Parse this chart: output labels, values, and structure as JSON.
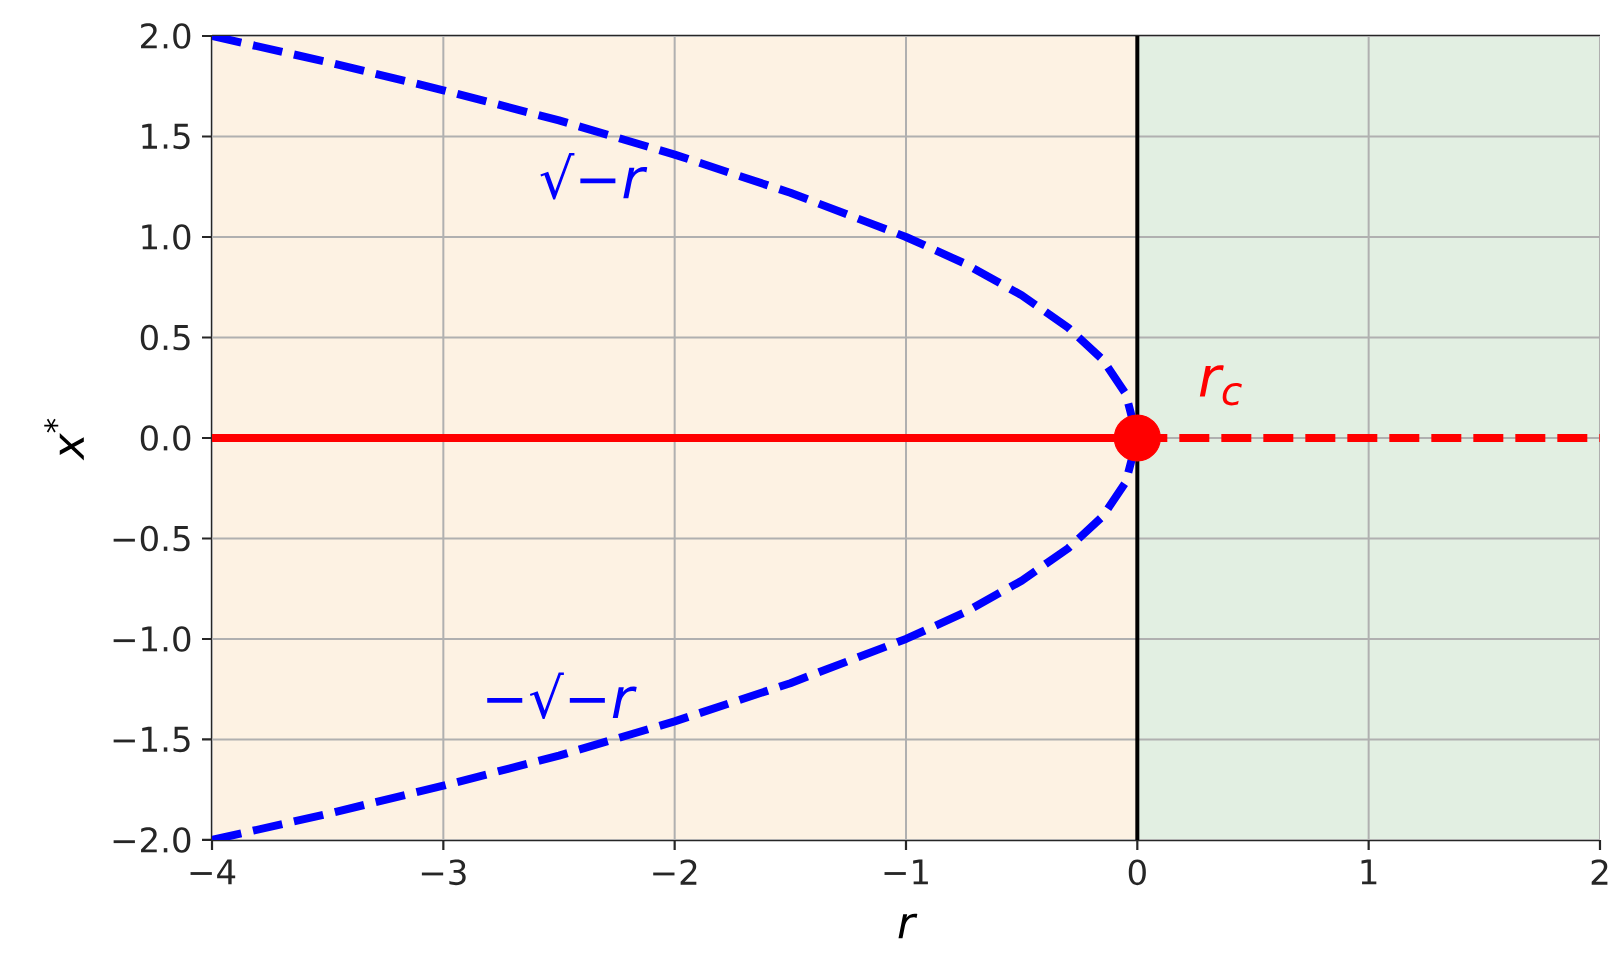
{
  "chart_data": {
    "type": "line",
    "xlabel": "r",
    "ylabel": "x$^{*}$",
    "xlim": [
      -4,
      2
    ],
    "ylim": [
      -2,
      2
    ],
    "xticks": [
      {
        "value": -4,
        "label": "−4"
      },
      {
        "value": -3,
        "label": "−3"
      },
      {
        "value": -2,
        "label": "−2"
      },
      {
        "value": -1,
        "label": "−1"
      },
      0,
      1,
      2
    ],
    "yticks": [
      {
        "value": -2,
        "label": "−2.0"
      },
      {
        "value": -1.5,
        "label": "−1.5"
      },
      {
        "value": -1,
        "label": "−1.0"
      },
      {
        "value": -0.5,
        "label": "−0.5"
      },
      {
        "value": 0,
        "label": "0.0"
      },
      {
        "value": 0.5,
        "label": "0.5"
      },
      {
        "value": 1,
        "label": "1.0"
      },
      {
        "value": 1.5,
        "label": "1.5"
      },
      {
        "value": 2,
        "label": "2.0"
      }
    ],
    "grid": true,
    "bands": [
      {
        "axis": "x",
        "from": -4,
        "to": 0,
        "color": "#fdf2e3"
      },
      {
        "axis": "x",
        "from": 0,
        "to": 2,
        "color": "#e2efe2"
      }
    ],
    "ref_lines": [
      {
        "axis": "x",
        "value": 0,
        "color": "#000000"
      }
    ],
    "series": [
      {
        "name": "√−*r*",
        "color": "#0000ff",
        "line_style": "dashed",
        "x": [
          -4,
          -3.5,
          -3,
          -2.5,
          -2,
          -1.5,
          -1,
          -0.75,
          -0.5,
          -0.3,
          -0.15,
          -0.05,
          0
        ],
        "values": [
          2,
          1.87,
          1.73,
          1.58,
          1.41,
          1.22,
          1,
          0.87,
          0.71,
          0.55,
          0.39,
          0.22,
          0
        ]
      },
      {
        "name": "−√−*r*",
        "color": "#0000ff",
        "line_style": "dashed",
        "x": [
          -4,
          -3.5,
          -3,
          -2.5,
          -2,
          -1.5,
          -1,
          -0.75,
          -0.5,
          -0.3,
          -0.15,
          -0.05,
          0
        ],
        "values": [
          -2,
          -1.87,
          -1.73,
          -1.58,
          -1.41,
          -1.22,
          -1,
          -0.87,
          -0.71,
          -0.55,
          -0.39,
          -0.22,
          0
        ]
      },
      {
        "color": "#ff0000",
        "line_style": "solid",
        "x": [
          -4,
          0
        ],
        "values": [
          0,
          0
        ]
      },
      {
        "color": "#ff0000",
        "line_style": "dashed",
        "x": [
          0,
          2
        ],
        "values": [
          0,
          0
        ]
      },
      {
        "name": "r$_{c}$",
        "type": "scatter",
        "color": "#ff0000",
        "marker": "circle",
        "x": [
          0
        ],
        "values": [
          0
        ]
      }
    ]
  }
}
